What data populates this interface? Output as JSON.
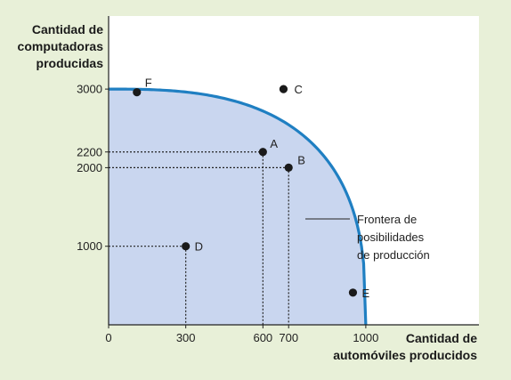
{
  "chart_data": {
    "type": "area",
    "ylabel_lines": [
      "Cantidad de",
      "computadoras",
      "producidas"
    ],
    "xlabel_lines": [
      "Cantidad de",
      "automóviles producidos"
    ],
    "xlim": [
      0,
      1440
    ],
    "ylim": [
      0,
      3930
    ],
    "x_ticks": [
      {
        "value": 0,
        "label": "0"
      },
      {
        "value": 300,
        "label": "300"
      },
      {
        "value": 600,
        "label": "600"
      },
      {
        "value": 700,
        "label": "700"
      },
      {
        "value": 1000,
        "label": "1000"
      }
    ],
    "y_ticks": [
      {
        "value": 1000,
        "label": "1000"
      },
      {
        "value": 2000,
        "label": "2000"
      },
      {
        "value": 2200,
        "label": "2200"
      },
      {
        "value": 3000,
        "label": "3000"
      }
    ],
    "frontier": {
      "x_max": 1000,
      "y_max": 3000,
      "samples": [
        {
          "x": 0,
          "y": 3000
        },
        {
          "x": 110,
          "y": 2960
        },
        {
          "x": 600,
          "y": 2200
        },
        {
          "x": 700,
          "y": 2000
        },
        {
          "x": 950,
          "y": 410
        },
        {
          "x": 1000,
          "y": 0
        }
      ]
    },
    "points": [
      {
        "label": "F",
        "x": 110,
        "y": 2960,
        "guides": false
      },
      {
        "label": "C",
        "x": 680,
        "y": 3000,
        "guides": false
      },
      {
        "label": "A",
        "x": 600,
        "y": 2200,
        "guides": true
      },
      {
        "label": "B",
        "x": 700,
        "y": 2000,
        "guides": true
      },
      {
        "label": "D",
        "x": 300,
        "y": 1000,
        "guides": true
      },
      {
        "label": "E",
        "x": 950,
        "y": 410,
        "guides": false
      }
    ],
    "annotation_lines": [
      "Frontera de",
      "posibilidades",
      "de producción"
    ],
    "colors": {
      "background": "#e8f0d8",
      "plot_background": "#ffffff",
      "area_fill": "#c9d6ef",
      "curve": "#1f7fc2",
      "points": "#1a1a1a"
    }
  }
}
